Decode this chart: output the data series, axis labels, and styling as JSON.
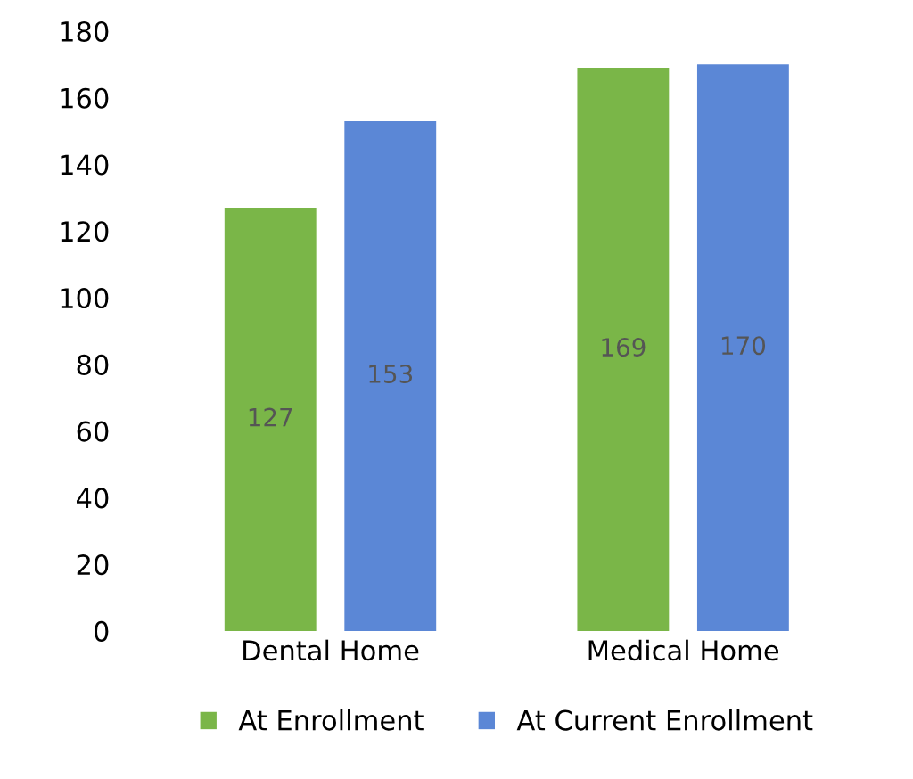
{
  "chart_data": {
    "type": "bar",
    "categories": [
      "Dental Home",
      "Medical Home"
    ],
    "series": [
      {
        "name": "At Enrollment",
        "color": "#7ab648",
        "values": [
          127,
          169
        ]
      },
      {
        "name": "At Current Enrollment",
        "color": "#5b87d6",
        "values": [
          153,
          170
        ]
      }
    ],
    "ylim": [
      0,
      180
    ],
    "yticks": [
      0,
      20,
      40,
      60,
      80,
      100,
      120,
      140,
      160,
      180
    ],
    "data_labels": true,
    "legend": "bottom",
    "grid": false
  }
}
